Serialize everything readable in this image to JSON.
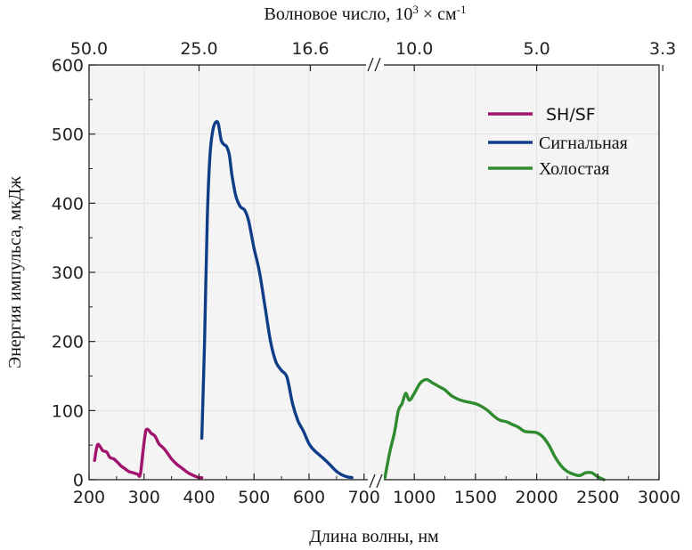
{
  "chart_data": {
    "type": "line",
    "title": "",
    "top_axis": {
      "title_main": "Волновое число, 10",
      "title_exp": "3",
      "title_unit": " × см",
      "title_unit_exp": "-1",
      "tick_labels": [
        "50.0",
        "25.0",
        "16.6",
        "10.0",
        "5.0",
        "3.3"
      ]
    },
    "xlabel": "Длина волны, нм",
    "ylabel": "Энергия импульса, мкДж",
    "ylim": [
      0,
      600
    ],
    "y_ticks": [
      0,
      100,
      200,
      300,
      400,
      500,
      600
    ],
    "x_axis_break": true,
    "x_segments": [
      {
        "xlim": [
          200,
          715
        ],
        "ticks": [
          200,
          300,
          400,
          500,
          600,
          700
        ]
      },
      {
        "xlim": [
          715,
          3000
        ],
        "ticks": [
          1000,
          1500,
          2000,
          2500,
          3000
        ]
      }
    ],
    "legend_position": "top-right",
    "grid": true,
    "series": [
      {
        "name": "SH/SF",
        "color": "#a0146e",
        "points": [
          [
            210,
            28
          ],
          [
            215,
            50
          ],
          [
            220,
            48
          ],
          [
            225,
            42
          ],
          [
            232,
            40
          ],
          [
            238,
            32
          ],
          [
            245,
            30
          ],
          [
            252,
            25
          ],
          [
            258,
            20
          ],
          [
            265,
            16
          ],
          [
            272,
            12
          ],
          [
            280,
            10
          ],
          [
            288,
            8
          ],
          [
            293,
            7
          ],
          [
            298,
            40
          ],
          [
            303,
            70
          ],
          [
            308,
            72
          ],
          [
            313,
            67
          ],
          [
            320,
            63
          ],
          [
            327,
            52
          ],
          [
            335,
            46
          ],
          [
            343,
            38
          ],
          [
            350,
            30
          ],
          [
            360,
            22
          ],
          [
            370,
            16
          ],
          [
            380,
            10
          ],
          [
            390,
            6
          ],
          [
            400,
            3
          ],
          [
            405,
            3
          ]
        ]
      },
      {
        "name": "Сигнальная",
        "color": "#0f3d87",
        "points": [
          [
            405,
            60
          ],
          [
            410,
            200
          ],
          [
            415,
            380
          ],
          [
            420,
            470
          ],
          [
            425,
            505
          ],
          [
            430,
            517
          ],
          [
            435,
            515
          ],
          [
            440,
            492
          ],
          [
            445,
            485
          ],
          [
            450,
            482
          ],
          [
            455,
            470
          ],
          [
            460,
            440
          ],
          [
            467,
            410
          ],
          [
            475,
            395
          ],
          [
            483,
            390
          ],
          [
            490,
            375
          ],
          [
            500,
            335
          ],
          [
            510,
            300
          ],
          [
            520,
            250
          ],
          [
            530,
            200
          ],
          [
            540,
            170
          ],
          [
            550,
            158
          ],
          [
            560,
            148
          ],
          [
            570,
            110
          ],
          [
            580,
            85
          ],
          [
            590,
            70
          ],
          [
            600,
            52
          ],
          [
            610,
            42
          ],
          [
            620,
            35
          ],
          [
            630,
            28
          ],
          [
            640,
            20
          ],
          [
            650,
            12
          ],
          [
            660,
            7
          ],
          [
            670,
            4
          ],
          [
            678,
            3
          ]
        ]
      },
      {
        "name": "Холостая",
        "color": "#2e8b2e",
        "points": [
          [
            760,
            3
          ],
          [
            800,
            40
          ],
          [
            840,
            70
          ],
          [
            870,
            100
          ],
          [
            900,
            110
          ],
          [
            930,
            125
          ],
          [
            960,
            115
          ],
          [
            1000,
            125
          ],
          [
            1050,
            140
          ],
          [
            1100,
            145
          ],
          [
            1150,
            140
          ],
          [
            1200,
            135
          ],
          [
            1250,
            130
          ],
          [
            1300,
            122
          ],
          [
            1350,
            117
          ],
          [
            1400,
            114
          ],
          [
            1450,
            112
          ],
          [
            1500,
            110
          ],
          [
            1550,
            106
          ],
          [
            1600,
            100
          ],
          [
            1650,
            92
          ],
          [
            1700,
            86
          ],
          [
            1750,
            84
          ],
          [
            1800,
            80
          ],
          [
            1850,
            76
          ],
          [
            1900,
            70
          ],
          [
            1950,
            69
          ],
          [
            2000,
            68
          ],
          [
            2050,
            62
          ],
          [
            2100,
            50
          ],
          [
            2150,
            33
          ],
          [
            2200,
            20
          ],
          [
            2250,
            12
          ],
          [
            2300,
            8
          ],
          [
            2350,
            6
          ],
          [
            2400,
            10
          ],
          [
            2450,
            10
          ],
          [
            2500,
            4
          ],
          [
            2550,
            0
          ]
        ]
      }
    ]
  }
}
